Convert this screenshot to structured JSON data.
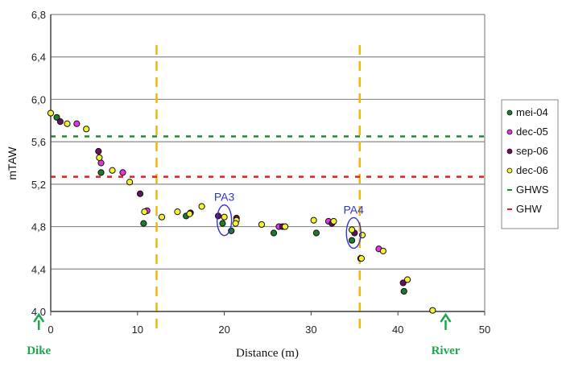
{
  "chart_data": {
    "type": "scatter",
    "xlabel": "Distance (m)",
    "ylabel": "mTAW",
    "xlim": [
      0,
      50
    ],
    "ylim": [
      4.0,
      6.8
    ],
    "xticks": [
      "0",
      "10",
      "20",
      "30",
      "40",
      "50"
    ],
    "xtick_values": [
      0,
      10,
      20,
      30,
      40,
      50
    ],
    "yticks": [
      "4,0",
      "4,4",
      "4,8",
      "5,2",
      "5,6",
      "6,0",
      "6,4",
      "6,8"
    ],
    "ytick_values": [
      4.0,
      4.4,
      4.8,
      5.2,
      5.6,
      6.0,
      6.4,
      6.8
    ],
    "grid": "horizontal",
    "legend_position": "right",
    "series": [
      {
        "name": "mei-04",
        "color": "#1e7a2a",
        "points": [
          [
            0.7,
            5.83
          ],
          [
            5.8,
            5.31
          ],
          [
            10.7,
            4.83
          ],
          [
            15.6,
            4.9
          ],
          [
            19.8,
            4.83
          ],
          [
            20.8,
            4.76
          ],
          [
            25.7,
            4.74
          ],
          [
            30.6,
            4.74
          ],
          [
            34.7,
            4.67
          ],
          [
            35.7,
            4.5
          ],
          [
            40.7,
            4.19
          ]
        ]
      },
      {
        "name": "dec-05",
        "color": "#e633e6",
        "points": [
          [
            3.0,
            5.77
          ],
          [
            5.8,
            5.4
          ],
          [
            8.3,
            5.31
          ],
          [
            11.1,
            4.95
          ],
          [
            26.3,
            4.8
          ],
          [
            32.0,
            4.85
          ],
          [
            37.8,
            4.59
          ]
        ]
      },
      {
        "name": "sep-06",
        "color": "#6a1060",
        "points": [
          [
            1.1,
            5.79
          ],
          [
            5.5,
            5.51
          ],
          [
            10.3,
            5.11
          ],
          [
            16.1,
            4.93
          ],
          [
            19.3,
            4.9
          ],
          [
            21.4,
            4.88
          ],
          [
            26.7,
            4.8
          ],
          [
            32.4,
            4.83
          ],
          [
            35.0,
            4.74
          ],
          [
            40.6,
            4.27
          ]
        ]
      },
      {
        "name": "dec-06",
        "color": "#f5f032",
        "points": [
          [
            0.0,
            5.87
          ],
          [
            1.9,
            5.77
          ],
          [
            4.1,
            5.72
          ],
          [
            5.6,
            5.45
          ],
          [
            7.1,
            5.33
          ],
          [
            9.1,
            5.22
          ],
          [
            10.8,
            4.94
          ],
          [
            12.8,
            4.89
          ],
          [
            14.6,
            4.94
          ],
          [
            16.0,
            4.92
          ],
          [
            17.4,
            4.99
          ],
          [
            20.0,
            4.89
          ],
          [
            21.4,
            4.86
          ],
          [
            21.3,
            4.83
          ],
          [
            24.3,
            4.82
          ],
          [
            27.0,
            4.8
          ],
          [
            30.3,
            4.86
          ],
          [
            32.6,
            4.85
          ],
          [
            34.7,
            4.77
          ],
          [
            35.9,
            4.72
          ],
          [
            35.8,
            4.5
          ],
          [
            38.3,
            4.57
          ],
          [
            41.1,
            4.3
          ],
          [
            44.0,
            4.01
          ]
        ]
      }
    ],
    "reference_lines": [
      {
        "name": "GHWS",
        "y": 5.65,
        "color": "#1e8a2a"
      },
      {
        "name": "GHW",
        "y": 5.27,
        "color": "#dd2222"
      }
    ],
    "vertical_lines": [
      {
        "x": 12.2,
        "color": "#f5b50a"
      },
      {
        "x": 35.6,
        "color": "#f5b50a"
      }
    ],
    "annotations": [
      {
        "text": "PA3",
        "x": 20.0,
        "y": 4.86,
        "color": "#3333cc"
      },
      {
        "text": "PA4",
        "x": 34.9,
        "y": 4.74,
        "color": "#3333cc"
      }
    ],
    "markers": [
      {
        "text": "Dike",
        "x": -1.0,
        "color": "#1aa84a"
      },
      {
        "text": "River",
        "x": 45.5,
        "color": "#1aa84a"
      }
    ]
  }
}
